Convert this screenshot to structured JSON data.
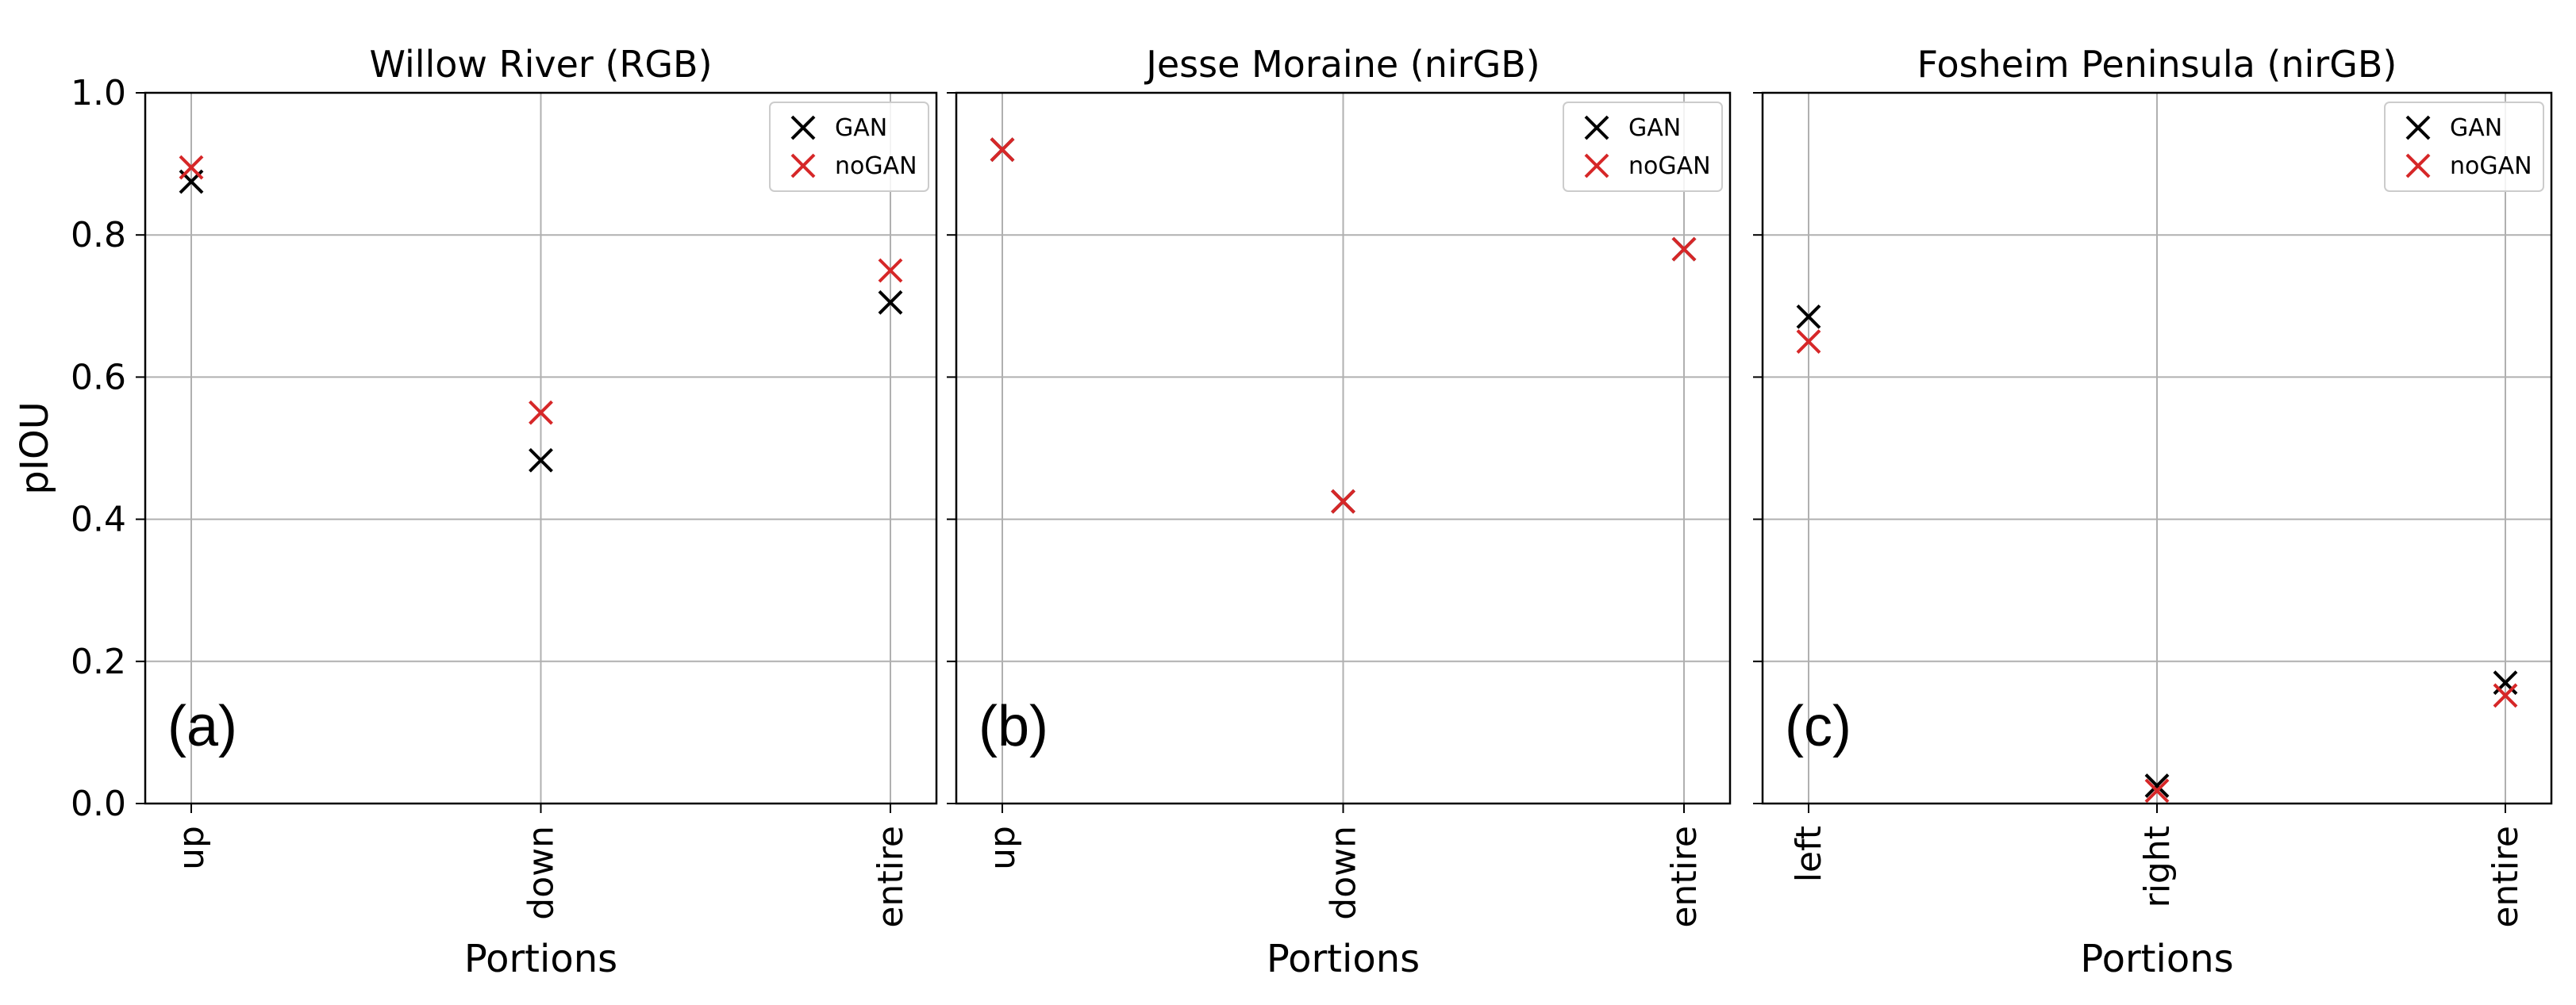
{
  "chart_data": [
    {
      "type": "scatter",
      "title": "Willow River (RGB)",
      "panel_tag": "(a)",
      "xlabel": "Portions",
      "ylabel": "pIOU",
      "categories": [
        "up",
        "down",
        "entire"
      ],
      "ylim": [
        0,
        1.0
      ],
      "yticks": [
        "0.0",
        "0.2",
        "0.4",
        "0.6",
        "0.8",
        "1.0"
      ],
      "grid": true,
      "legend_position": "top-right",
      "series": [
        {
          "name": "GAN",
          "color": "#000000",
          "marker": "x",
          "values": [
            0.875,
            0.483,
            0.705
          ]
        },
        {
          "name": "noGAN",
          "color": "#d62728",
          "marker": "x",
          "values": [
            0.895,
            0.55,
            0.75
          ]
        }
      ]
    },
    {
      "type": "scatter",
      "title": "Jesse Moraine (nirGB)",
      "panel_tag": "(b)",
      "xlabel": "Portions",
      "ylabel": "",
      "categories": [
        "up",
        "down",
        "entire"
      ],
      "ylim": [
        0,
        1.0
      ],
      "grid": true,
      "legend_position": "top-right",
      "series": [
        {
          "name": "GAN",
          "color": "#000000",
          "marker": "x",
          "values": [
            0.92,
            0.425,
            0.78
          ]
        },
        {
          "name": "noGAN",
          "color": "#d62728",
          "marker": "x",
          "values": [
            0.92,
            0.425,
            0.78
          ]
        }
      ]
    },
    {
      "type": "scatter",
      "title": "Fosheim Peninsula (nirGB)",
      "panel_tag": "(c)",
      "xlabel": "Portions",
      "ylabel": "",
      "categories": [
        "left",
        "right",
        "entire"
      ],
      "ylim": [
        0,
        1.0
      ],
      "grid": true,
      "legend_position": "top-right",
      "series": [
        {
          "name": "GAN",
          "color": "#000000",
          "marker": "x",
          "values": [
            0.685,
            0.025,
            0.17
          ]
        },
        {
          "name": "noGAN",
          "color": "#d62728",
          "marker": "x",
          "values": [
            0.65,
            0.018,
            0.152
          ]
        }
      ]
    }
  ]
}
